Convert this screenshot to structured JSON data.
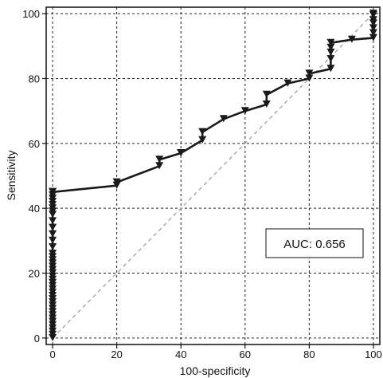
{
  "chart_data": {
    "type": "line",
    "title": "",
    "xlabel": "100-specificity",
    "ylabel": "Sensitivity",
    "xlim": [
      -2,
      102
    ],
    "ylim": [
      -2,
      102
    ],
    "xticks": [
      "0",
      "20",
      "40",
      "60",
      "80",
      "100"
    ],
    "yticks": [
      "0",
      "20",
      "40",
      "60",
      "80",
      "100"
    ],
    "grid": true,
    "annotation": "AUC: 0.656",
    "reference_line": {
      "style": "dashed",
      "color": "#a8a8a8",
      "from": [
        0,
        0
      ],
      "to": [
        100,
        100
      ]
    },
    "series": [
      {
        "color": "#1a1a1a",
        "marker": "filled-down-triangle",
        "x": [
          0,
          0,
          0,
          0,
          0,
          0,
          0,
          0,
          0,
          0,
          0,
          0,
          0,
          0,
          0,
          0,
          0,
          0,
          0,
          0,
          0,
          0,
          0,
          0,
          0,
          0,
          0,
          0,
          0,
          0,
          0,
          0,
          0,
          0,
          0,
          0,
          0,
          0,
          0,
          0,
          0,
          20,
          20,
          33.3,
          33.3,
          40,
          40,
          40,
          46.7,
          46.7,
          53.3,
          60,
          66.7,
          66.7,
          73.3,
          80,
          80,
          86.7,
          86.7,
          86.7,
          86.7,
          86.7,
          93.3,
          100,
          100,
          100,
          100,
          100,
          100,
          100
        ],
        "y": [
          0,
          1,
          2,
          3,
          4,
          5,
          6,
          7,
          8,
          9,
          10,
          11,
          12,
          13,
          14,
          15,
          16,
          17,
          18,
          19,
          20,
          21,
          22,
          23,
          24,
          25,
          26,
          28,
          30,
          32,
          34,
          36,
          38,
          39,
          40,
          41,
          42,
          43,
          44,
          45,
          45,
          47,
          48,
          53,
          55,
          57,
          57,
          57,
          61,
          63.5,
          67.5,
          70,
          72,
          75,
          78.5,
          80,
          81.5,
          83,
          86,
          88,
          89.5,
          91,
          92,
          92.5,
          94,
          95.5,
          97,
          98,
          99.5,
          100
        ]
      }
    ]
  }
}
